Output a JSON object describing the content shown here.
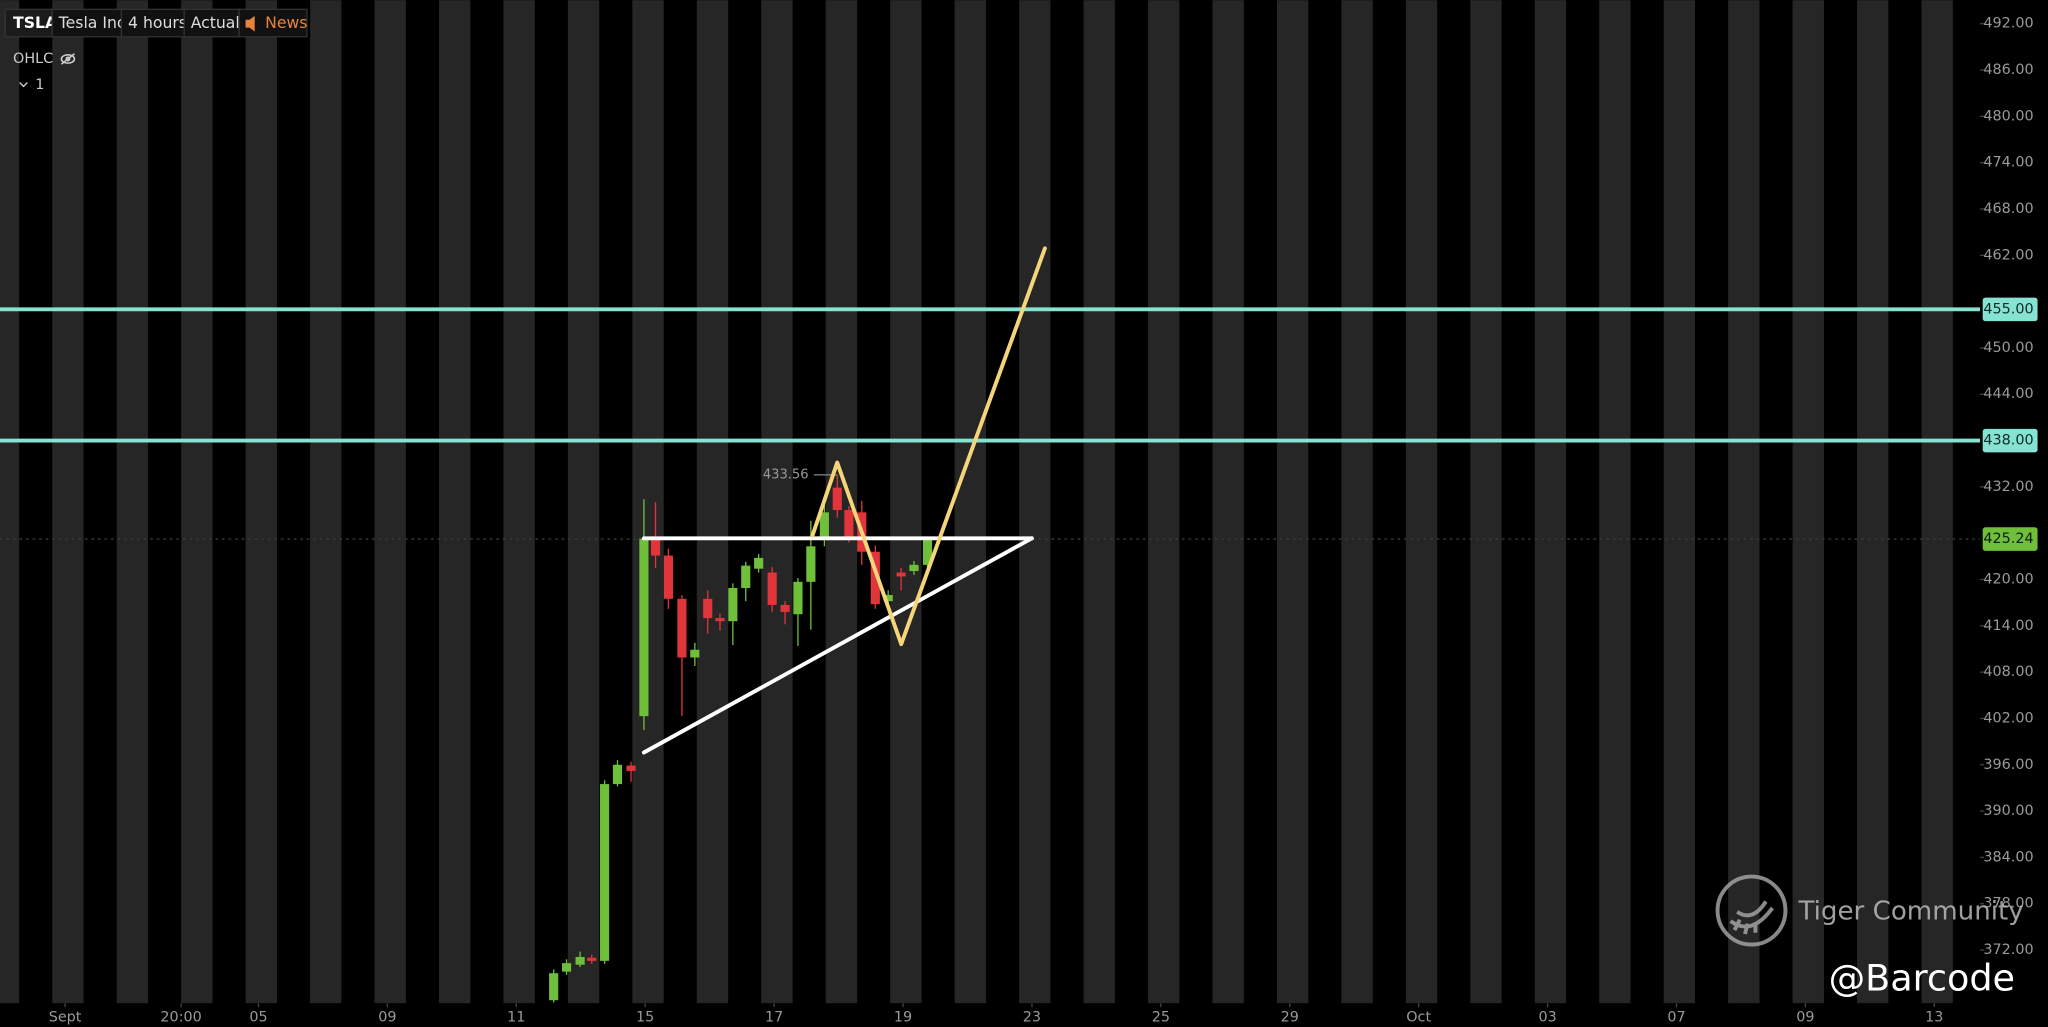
{
  "header": {
    "symbol": "TSLA",
    "name": "Tesla Inc",
    "interval": "4 hours",
    "mode": "Actual",
    "news": "News"
  },
  "legend": {
    "indicator": "OHLC",
    "pane": "1"
  },
  "watermark": {
    "brand": "Tiger Community",
    "author": "@Barcode"
  },
  "chart_data": {
    "type": "candlestick",
    "up_color": "#6fbf3b",
    "down_color": "#e0353b",
    "x": [
      -1.42,
      -1.22,
      -1.01,
      -0.83,
      -0.63,
      -0.43,
      -0.22,
      -0.02,
      0.16,
      0.36,
      0.57,
      0.77,
      0.97,
      1.16,
      1.36,
      1.56,
      1.76,
      1.97,
      2.17,
      2.37,
      2.57,
      2.78,
      2.98,
      3.16,
      3.36,
      3.57,
      3.77,
      3.97,
      4.17,
      4.38
    ],
    "open": [
      365.5,
      369.2,
      370.1,
      371.0,
      370.6,
      393.5,
      395.9,
      402.3,
      425.3,
      423.1,
      417.5,
      409.9,
      417.5,
      415.0,
      414.6,
      418.9,
      421.4,
      420.9,
      416.7,
      415.5,
      419.7,
      425.1,
      431.9,
      429.0,
      428.7,
      423.6,
      417.2,
      420.9,
      421.1,
      421.9
    ],
    "high": [
      369.5,
      370.8,
      371.8,
      371.4,
      394.0,
      396.6,
      396.4,
      430.4,
      430.0,
      424.0,
      418.0,
      411.8,
      418.6,
      415.6,
      419.5,
      422.3,
      423.3,
      421.6,
      417.2,
      420.2,
      427.6,
      429.8,
      433.56,
      429.5,
      430.2,
      424.4,
      418.6,
      421.5,
      422.4,
      425.6
    ],
    "low": [
      365.2,
      368.8,
      369.8,
      370.2,
      370.2,
      393.2,
      393.8,
      400.5,
      421.5,
      416.2,
      402.3,
      408.8,
      413.0,
      413.4,
      411.5,
      417.2,
      420.9,
      415.8,
      414.2,
      411.4,
      413.5,
      424.3,
      428.0,
      424.8,
      421.9,
      416.2,
      416.8,
      418.6,
      420.6,
      421.2
    ],
    "close": [
      369.0,
      370.3,
      371.1,
      370.6,
      393.5,
      396.0,
      395.2,
      425.3,
      423.1,
      417.5,
      409.9,
      410.9,
      415.0,
      414.6,
      418.9,
      421.8,
      422.8,
      416.7,
      415.8,
      419.7,
      424.3,
      428.7,
      429.0,
      425.3,
      423.6,
      416.8,
      418.0,
      420.4,
      421.9,
      425.24
    ],
    "high_label": 433.56,
    "levels": [
      {
        "value": 455,
        "label": "455.00"
      },
      {
        "value": 438,
        "label": "438.00"
      }
    ],
    "level_color": "#86e3d2",
    "last_price": {
      "value": 425.24,
      "label": "425.24"
    },
    "ylim": [
      365.1,
      495.05
    ],
    "yticks": [
      {
        "value": 492,
        "label": "492.00"
      },
      {
        "value": 486,
        "label": "486.00"
      },
      {
        "value": 480,
        "label": "480.00"
      },
      {
        "value": 474,
        "label": "474.00"
      },
      {
        "value": 468,
        "label": "468.00"
      },
      {
        "value": 462,
        "label": "462.00"
      },
      {
        "value": 450,
        "label": "450.00"
      },
      {
        "value": 444,
        "label": "444.00"
      },
      {
        "value": 432,
        "label": "432.00"
      },
      {
        "value": 420,
        "label": "420.00"
      },
      {
        "value": 414,
        "label": "414.00"
      },
      {
        "value": 408,
        "label": "408.00"
      },
      {
        "value": 402,
        "label": "402.00"
      },
      {
        "value": 396,
        "label": "396.00"
      },
      {
        "value": 390,
        "label": "390.00"
      },
      {
        "value": 384,
        "label": "384.00"
      },
      {
        "value": 378,
        "label": "378.00"
      },
      {
        "value": 372,
        "label": "372.00"
      }
    ],
    "xlim": [
      -10.01,
      20.71
    ],
    "xticks": [
      {
        "value": -9,
        "label": "Sept"
      },
      {
        "value": -7.2,
        "label": "20:00"
      },
      {
        "value": -6,
        "label": "05"
      },
      {
        "value": -4,
        "label": "09"
      },
      {
        "value": -2,
        "label": "11"
      },
      {
        "value": 0,
        "label": "15"
      },
      {
        "value": 2,
        "label": "17"
      },
      {
        "value": 4,
        "label": "19"
      },
      {
        "value": 6,
        "label": "23"
      },
      {
        "value": 8,
        "label": "25"
      },
      {
        "value": 10,
        "label": "29"
      },
      {
        "value": 12,
        "label": "Oct"
      },
      {
        "value": 14,
        "label": "03"
      },
      {
        "value": 16,
        "label": "07"
      },
      {
        "value": 18,
        "label": "09"
      },
      {
        "value": 20,
        "label": "13"
      }
    ]
  }
}
